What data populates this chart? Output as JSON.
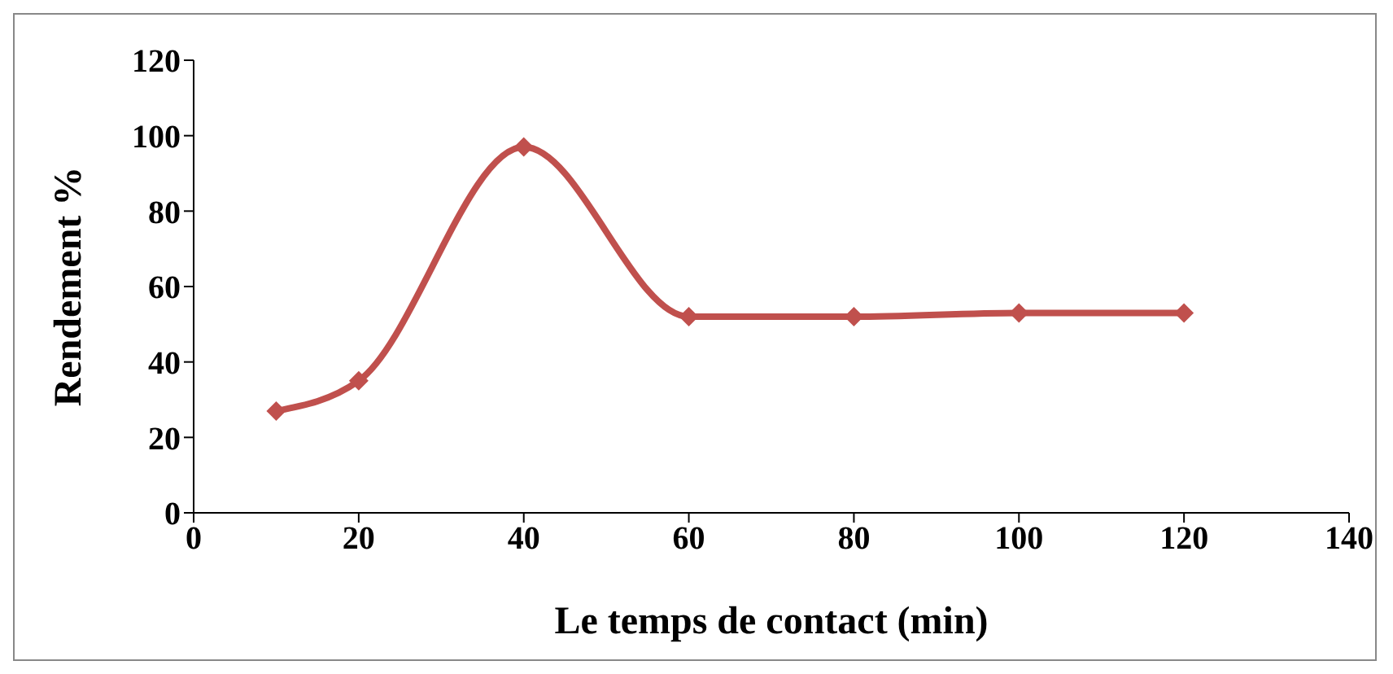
{
  "chart_data": {
    "type": "line",
    "xlabel": "Le temps de contact (min)",
    "ylabel": "Rendement %",
    "x": [
      10,
      20,
      40,
      60,
      80,
      100,
      120
    ],
    "series": [
      {
        "color": "#c0504d",
        "values": [
          27,
          35,
          97,
          52,
          52,
          53,
          53
        ]
      }
    ],
    "xlim": [
      0,
      140
    ],
    "xticks": [
      0,
      20,
      40,
      60,
      80,
      100,
      120,
      140
    ],
    "ylim": [
      0,
      120
    ],
    "yticks": [
      0,
      20,
      40,
      60,
      80,
      100,
      120
    ],
    "grid": false,
    "legend": false,
    "marker": "diamond",
    "line_style": "solid"
  }
}
